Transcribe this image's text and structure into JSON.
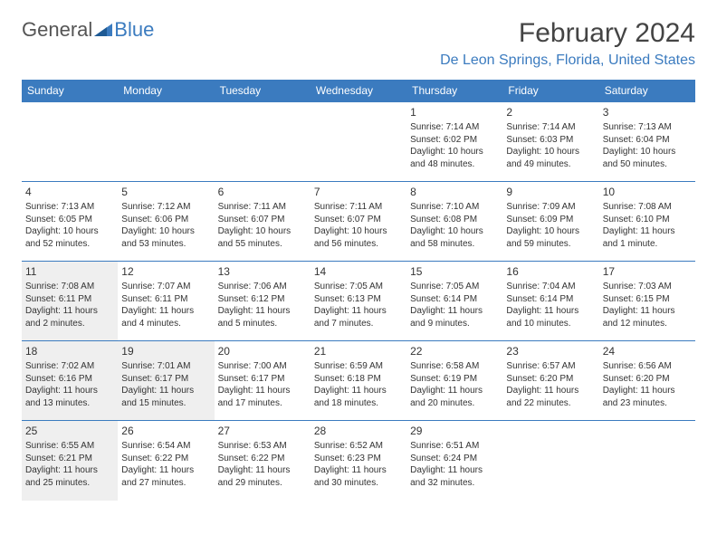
{
  "logo": {
    "text1": "General",
    "text2": "Blue"
  },
  "title": "February 2024",
  "location": "De Leon Springs, Florida, United States",
  "colors": {
    "header_bg": "#3b7bbf",
    "header_text": "#ffffff",
    "location_text": "#3b7bbf",
    "border": "#3b7bbf",
    "shaded_bg": "#efefef",
    "body_text": "#333333"
  },
  "weekdays": [
    "Sunday",
    "Monday",
    "Tuesday",
    "Wednesday",
    "Thursday",
    "Friday",
    "Saturday"
  ],
  "weeks": [
    [
      {
        "blank": true
      },
      {
        "blank": true
      },
      {
        "blank": true
      },
      {
        "blank": true
      },
      {
        "day": "1",
        "sunrise": "Sunrise: 7:14 AM",
        "sunset": "Sunset: 6:02 PM",
        "d1": "Daylight: 10 hours",
        "d2": "and 48 minutes."
      },
      {
        "day": "2",
        "sunrise": "Sunrise: 7:14 AM",
        "sunset": "Sunset: 6:03 PM",
        "d1": "Daylight: 10 hours",
        "d2": "and 49 minutes."
      },
      {
        "day": "3",
        "sunrise": "Sunrise: 7:13 AM",
        "sunset": "Sunset: 6:04 PM",
        "d1": "Daylight: 10 hours",
        "d2": "and 50 minutes."
      }
    ],
    [
      {
        "day": "4",
        "sunrise": "Sunrise: 7:13 AM",
        "sunset": "Sunset: 6:05 PM",
        "d1": "Daylight: 10 hours",
        "d2": "and 52 minutes."
      },
      {
        "day": "5",
        "sunrise": "Sunrise: 7:12 AM",
        "sunset": "Sunset: 6:06 PM",
        "d1": "Daylight: 10 hours",
        "d2": "and 53 minutes."
      },
      {
        "day": "6",
        "sunrise": "Sunrise: 7:11 AM",
        "sunset": "Sunset: 6:07 PM",
        "d1": "Daylight: 10 hours",
        "d2": "and 55 minutes."
      },
      {
        "day": "7",
        "sunrise": "Sunrise: 7:11 AM",
        "sunset": "Sunset: 6:07 PM",
        "d1": "Daylight: 10 hours",
        "d2": "and 56 minutes."
      },
      {
        "day": "8",
        "sunrise": "Sunrise: 7:10 AM",
        "sunset": "Sunset: 6:08 PM",
        "d1": "Daylight: 10 hours",
        "d2": "and 58 minutes."
      },
      {
        "day": "9",
        "sunrise": "Sunrise: 7:09 AM",
        "sunset": "Sunset: 6:09 PM",
        "d1": "Daylight: 10 hours",
        "d2": "and 59 minutes."
      },
      {
        "day": "10",
        "sunrise": "Sunrise: 7:08 AM",
        "sunset": "Sunset: 6:10 PM",
        "d1": "Daylight: 11 hours",
        "d2": "and 1 minute."
      }
    ],
    [
      {
        "day": "11",
        "shaded": true,
        "sunrise": "Sunrise: 7:08 AM",
        "sunset": "Sunset: 6:11 PM",
        "d1": "Daylight: 11 hours",
        "d2": "and 2 minutes."
      },
      {
        "day": "12",
        "sunrise": "Sunrise: 7:07 AM",
        "sunset": "Sunset: 6:11 PM",
        "d1": "Daylight: 11 hours",
        "d2": "and 4 minutes."
      },
      {
        "day": "13",
        "sunrise": "Sunrise: 7:06 AM",
        "sunset": "Sunset: 6:12 PM",
        "d1": "Daylight: 11 hours",
        "d2": "and 5 minutes."
      },
      {
        "day": "14",
        "sunrise": "Sunrise: 7:05 AM",
        "sunset": "Sunset: 6:13 PM",
        "d1": "Daylight: 11 hours",
        "d2": "and 7 minutes."
      },
      {
        "day": "15",
        "sunrise": "Sunrise: 7:05 AM",
        "sunset": "Sunset: 6:14 PM",
        "d1": "Daylight: 11 hours",
        "d2": "and 9 minutes."
      },
      {
        "day": "16",
        "sunrise": "Sunrise: 7:04 AM",
        "sunset": "Sunset: 6:14 PM",
        "d1": "Daylight: 11 hours",
        "d2": "and 10 minutes."
      },
      {
        "day": "17",
        "sunrise": "Sunrise: 7:03 AM",
        "sunset": "Sunset: 6:15 PM",
        "d1": "Daylight: 11 hours",
        "d2": "and 12 minutes."
      }
    ],
    [
      {
        "day": "18",
        "shaded": true,
        "sunrise": "Sunrise: 7:02 AM",
        "sunset": "Sunset: 6:16 PM",
        "d1": "Daylight: 11 hours",
        "d2": "and 13 minutes."
      },
      {
        "day": "19",
        "shaded": true,
        "sunrise": "Sunrise: 7:01 AM",
        "sunset": "Sunset: 6:17 PM",
        "d1": "Daylight: 11 hours",
        "d2": "and 15 minutes."
      },
      {
        "day": "20",
        "sunrise": "Sunrise: 7:00 AM",
        "sunset": "Sunset: 6:17 PM",
        "d1": "Daylight: 11 hours",
        "d2": "and 17 minutes."
      },
      {
        "day": "21",
        "sunrise": "Sunrise: 6:59 AM",
        "sunset": "Sunset: 6:18 PM",
        "d1": "Daylight: 11 hours",
        "d2": "and 18 minutes."
      },
      {
        "day": "22",
        "sunrise": "Sunrise: 6:58 AM",
        "sunset": "Sunset: 6:19 PM",
        "d1": "Daylight: 11 hours",
        "d2": "and 20 minutes."
      },
      {
        "day": "23",
        "sunrise": "Sunrise: 6:57 AM",
        "sunset": "Sunset: 6:20 PM",
        "d1": "Daylight: 11 hours",
        "d2": "and 22 minutes."
      },
      {
        "day": "24",
        "sunrise": "Sunrise: 6:56 AM",
        "sunset": "Sunset: 6:20 PM",
        "d1": "Daylight: 11 hours",
        "d2": "and 23 minutes."
      }
    ],
    [
      {
        "day": "25",
        "shaded": true,
        "sunrise": "Sunrise: 6:55 AM",
        "sunset": "Sunset: 6:21 PM",
        "d1": "Daylight: 11 hours",
        "d2": "and 25 minutes."
      },
      {
        "day": "26",
        "sunrise": "Sunrise: 6:54 AM",
        "sunset": "Sunset: 6:22 PM",
        "d1": "Daylight: 11 hours",
        "d2": "and 27 minutes."
      },
      {
        "day": "27",
        "sunrise": "Sunrise: 6:53 AM",
        "sunset": "Sunset: 6:22 PM",
        "d1": "Daylight: 11 hours",
        "d2": "and 29 minutes."
      },
      {
        "day": "28",
        "sunrise": "Sunrise: 6:52 AM",
        "sunset": "Sunset: 6:23 PM",
        "d1": "Daylight: 11 hours",
        "d2": "and 30 minutes."
      },
      {
        "day": "29",
        "sunrise": "Sunrise: 6:51 AM",
        "sunset": "Sunset: 6:24 PM",
        "d1": "Daylight: 11 hours",
        "d2": "and 32 minutes."
      },
      {
        "blank": true
      },
      {
        "blank": true
      }
    ]
  ]
}
